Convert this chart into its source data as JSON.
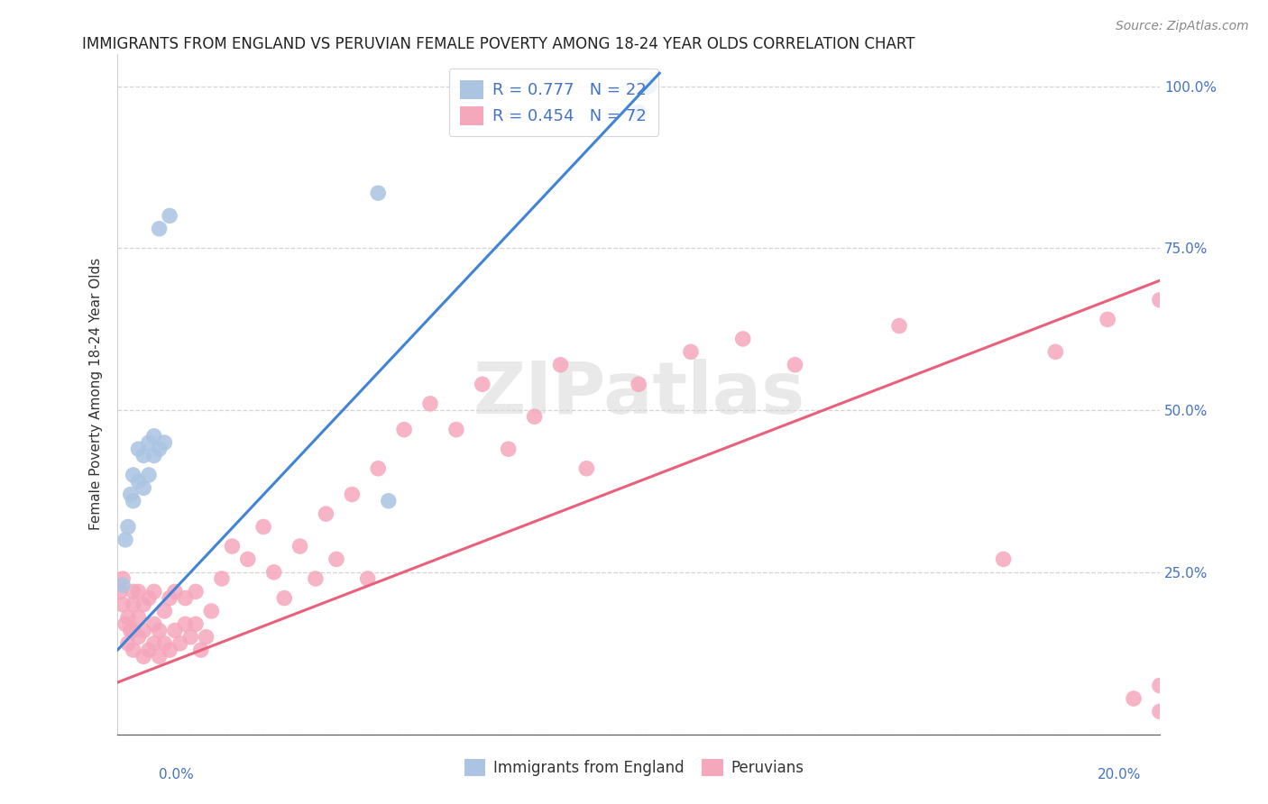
{
  "title": "IMMIGRANTS FROM ENGLAND VS PERUVIAN FEMALE POVERTY AMONG 18-24 YEAR OLDS CORRELATION CHART",
  "source": "Source: ZipAtlas.com",
  "ylabel": "Female Poverty Among 18-24 Year Olds",
  "england_color": "#aac4e2",
  "peruvian_color": "#f5a7bc",
  "england_line_color": "#4183d7",
  "peruvian_line_color": "#e8607a",
  "england_R": 0.777,
  "england_N": 22,
  "peruvian_R": 0.454,
  "peruvian_N": 72,
  "watermark": "ZIPatlas",
  "eng_line_x0": 0.0,
  "eng_line_y0": 0.13,
  "eng_line_x1": 0.104,
  "eng_line_y1": 1.02,
  "per_line_x0": 0.0,
  "per_line_y0": 0.08,
  "per_line_x1": 0.2,
  "per_line_y1": 0.7,
  "eng_x": [
    0.001,
    0.0015,
    0.002,
    0.0025,
    0.003,
    0.003,
    0.004,
    0.004,
    0.005,
    0.005,
    0.006,
    0.006,
    0.007,
    0.007,
    0.008,
    0.008,
    0.009,
    0.01,
    0.05,
    0.052,
    0.1,
    0.102
  ],
  "eng_y": [
    0.23,
    0.3,
    0.32,
    0.37,
    0.36,
    0.4,
    0.39,
    0.44,
    0.38,
    0.43,
    0.4,
    0.45,
    0.43,
    0.46,
    0.44,
    0.78,
    0.45,
    0.8,
    0.835,
    0.36,
    0.96,
    1.0
  ],
  "per_x": [
    0.0005,
    0.001,
    0.001,
    0.0015,
    0.002,
    0.002,
    0.0025,
    0.003,
    0.003,
    0.003,
    0.003,
    0.004,
    0.004,
    0.004,
    0.005,
    0.005,
    0.005,
    0.006,
    0.006,
    0.007,
    0.007,
    0.007,
    0.008,
    0.008,
    0.009,
    0.009,
    0.01,
    0.01,
    0.011,
    0.011,
    0.012,
    0.013,
    0.013,
    0.014,
    0.015,
    0.015,
    0.016,
    0.017,
    0.018,
    0.02,
    0.022,
    0.025,
    0.028,
    0.03,
    0.032,
    0.035,
    0.038,
    0.04,
    0.042,
    0.045,
    0.048,
    0.05,
    0.055,
    0.06,
    0.065,
    0.07,
    0.075,
    0.08,
    0.085,
    0.09,
    0.1,
    0.11,
    0.12,
    0.13,
    0.15,
    0.17,
    0.18,
    0.19,
    0.195,
    0.2,
    0.2,
    0.2
  ],
  "per_y": [
    0.22,
    0.2,
    0.24,
    0.17,
    0.14,
    0.18,
    0.16,
    0.13,
    0.16,
    0.2,
    0.22,
    0.15,
    0.18,
    0.22,
    0.12,
    0.16,
    0.2,
    0.13,
    0.21,
    0.14,
    0.17,
    0.22,
    0.12,
    0.16,
    0.14,
    0.19,
    0.13,
    0.21,
    0.16,
    0.22,
    0.14,
    0.17,
    0.21,
    0.15,
    0.22,
    0.17,
    0.13,
    0.15,
    0.19,
    0.24,
    0.29,
    0.27,
    0.32,
    0.25,
    0.21,
    0.29,
    0.24,
    0.34,
    0.27,
    0.37,
    0.24,
    0.41,
    0.47,
    0.51,
    0.47,
    0.54,
    0.44,
    0.49,
    0.57,
    0.41,
    0.54,
    0.59,
    0.61,
    0.57,
    0.63,
    0.27,
    0.59,
    0.64,
    0.055,
    0.67,
    0.075,
    0.035
  ],
  "xlim": [
    0,
    0.2
  ],
  "ylim": [
    0,
    1.05
  ],
  "yticks": [
    0.0,
    0.25,
    0.5,
    0.75,
    1.0
  ],
  "ytick_right_labels": [
    "",
    "25.0%",
    "50.0%",
    "75.0%",
    "100.0%"
  ],
  "grid_color": "#d0d0d0",
  "title_fontsize": 12,
  "axis_label_fontsize": 11,
  "tick_fontsize": 11,
  "source_fontsize": 10,
  "legend_fontsize": 13
}
